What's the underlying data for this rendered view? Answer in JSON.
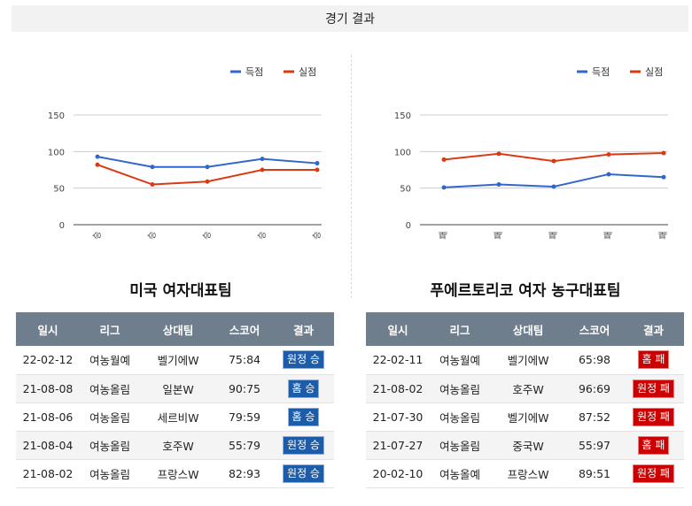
{
  "header": {
    "title": "경기 결과"
  },
  "colors": {
    "scored": "#3366cc",
    "conceded": "#dc3912",
    "win_badge": "#1d5ca8",
    "loss_badge": "#cc0000"
  },
  "chart_data": [
    {
      "type": "line",
      "categories": [
        "승",
        "승",
        "승",
        "승",
        "승"
      ],
      "series": [
        {
          "name": "득점",
          "values": [
            93,
            79,
            79,
            90,
            84
          ]
        },
        {
          "name": "실점",
          "values": [
            82,
            55,
            59,
            75,
            75
          ]
        }
      ],
      "yticks": [
        0,
        50,
        100,
        150
      ],
      "ylim": [
        0,
        150
      ],
      "legend_position": "top-right",
      "grid": true
    },
    {
      "type": "line",
      "categories": [
        "패",
        "패",
        "패",
        "패",
        "패"
      ],
      "series": [
        {
          "name": "득점",
          "values": [
            51,
            55,
            52,
            69,
            65
          ]
        },
        {
          "name": "실점",
          "values": [
            89,
            97,
            87,
            96,
            98
          ]
        }
      ],
      "yticks": [
        0,
        50,
        100,
        150
      ],
      "ylim": [
        0,
        150
      ],
      "legend_position": "top-right",
      "grid": true
    }
  ],
  "teams": [
    {
      "name": "미국 여자대표팀",
      "headers": [
        "일시",
        "리그",
        "상대팀",
        "스코어",
        "결과"
      ],
      "rows": [
        {
          "date": "22-02-12",
          "league": "여농월예",
          "opponent": "벨기에W",
          "score": "75:84",
          "result": "원정 승",
          "kind": "win"
        },
        {
          "date": "21-08-08",
          "league": "여농올림",
          "opponent": "일본W",
          "score": "90:75",
          "result": "홈 승",
          "kind": "win"
        },
        {
          "date": "21-08-06",
          "league": "여농올림",
          "opponent": "세르비W",
          "score": "79:59",
          "result": "홈 승",
          "kind": "win"
        },
        {
          "date": "21-08-04",
          "league": "여농올림",
          "opponent": "호주W",
          "score": "55:79",
          "result": "원정 승",
          "kind": "win"
        },
        {
          "date": "21-08-02",
          "league": "여농올림",
          "opponent": "프랑스W",
          "score": "82:93",
          "result": "원정 승",
          "kind": "win"
        }
      ]
    },
    {
      "name": "푸에르토리코 여자 농구대표팀",
      "headers": [
        "일시",
        "리그",
        "상대팀",
        "스코어",
        "결과"
      ],
      "rows": [
        {
          "date": "22-02-11",
          "league": "여농월예",
          "opponent": "벨기에W",
          "score": "65:98",
          "result": "홈 패",
          "kind": "loss"
        },
        {
          "date": "21-08-02",
          "league": "여농올림",
          "opponent": "호주W",
          "score": "96:69",
          "result": "원정 패",
          "kind": "loss"
        },
        {
          "date": "21-07-30",
          "league": "여농올림",
          "opponent": "벨기에W",
          "score": "87:52",
          "result": "원정 패",
          "kind": "loss"
        },
        {
          "date": "21-07-27",
          "league": "여농올림",
          "opponent": "중국W",
          "score": "55:97",
          "result": "홈 패",
          "kind": "loss"
        },
        {
          "date": "20-02-10",
          "league": "여농올예",
          "opponent": "프랑스W",
          "score": "89:51",
          "result": "원정 패",
          "kind": "loss"
        }
      ]
    }
  ]
}
